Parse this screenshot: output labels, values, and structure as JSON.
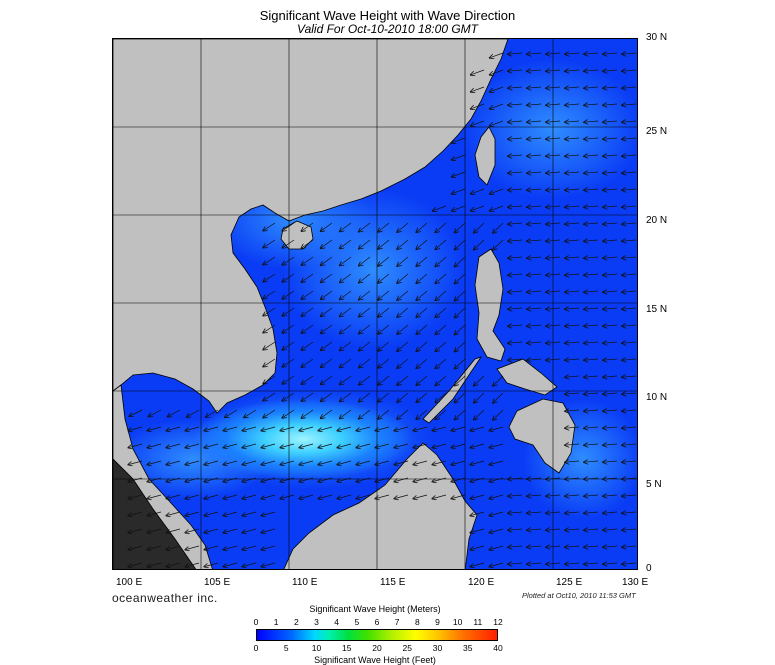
{
  "title": "Significant Wave Height with Wave Direction",
  "subtitle": "Valid For Oct-10-2010 18:00 GMT",
  "lat_labels": [
    "30 N",
    "25 N",
    "20 N",
    "15 N",
    "10 N",
    "5 N",
    "0"
  ],
  "lon_labels": [
    "100 E",
    "105 E",
    "110 E",
    "115 E",
    "120 E",
    "125 E",
    "130 E"
  ],
  "brand": "oceanweather inc.",
  "plotted": "Plotted at Oct10, 2010 11:53 GMT",
  "colorbar": {
    "title_meters": "Significant Wave Height (Meters)",
    "title_feet": "Significant Wave Height (Feet)",
    "meters_ticks": [
      "0",
      "1",
      "2",
      "3",
      "4",
      "5",
      "6",
      "7",
      "8",
      "9",
      "10",
      "11",
      "12"
    ],
    "feet_ticks": [
      "0",
      "5",
      "10",
      "15",
      "20",
      "25",
      "30",
      "35",
      "40"
    ]
  },
  "colors": {
    "land": "#c0c0c0",
    "ocean_deep": "#0010ee",
    "ocean_mid": "#1f6fff",
    "ocean_high": "#78e8ff",
    "arrow": "#101010",
    "coast": "#000000"
  }
}
